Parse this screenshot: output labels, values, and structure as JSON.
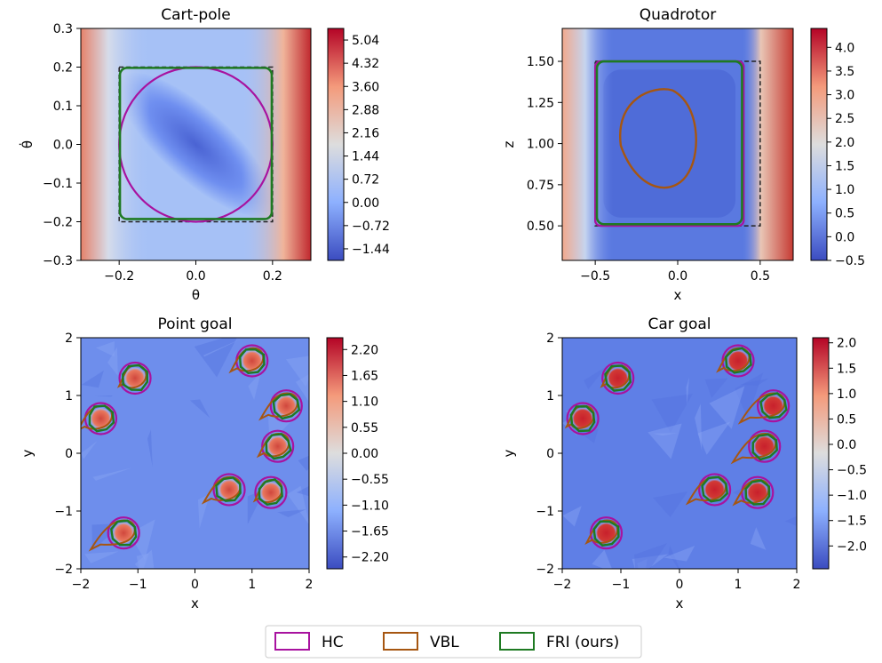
{
  "legend": [
    {
      "name": "HC",
      "color": "#a8129f"
    },
    {
      "name": "VBL",
      "color": "#a65611"
    },
    {
      "name": "FRI (ours)",
      "color": "#1e7a22"
    }
  ],
  "colors": {
    "cold": "#3b4cc0",
    "neutral": "#dddddd",
    "hot": "#b40426",
    "dashed": "#222222"
  },
  "chart_data": [
    {
      "type": "heatmap",
      "title": "Cart-pole",
      "xlabel": "θ",
      "ylabel": "θ̇",
      "xlim": [
        -0.3,
        0.3
      ],
      "ylim": [
        -0.3,
        0.3
      ],
      "xticks": [
        -0.2,
        0.0,
        0.2
      ],
      "xtick_labels": [
        "−0.2",
        "0.0",
        "0.2"
      ],
      "yticks": [
        -0.3,
        -0.2,
        -0.1,
        0.0,
        0.1,
        0.2,
        0.3
      ],
      "ytick_labels": [
        "−0.3",
        "−0.2",
        "−0.1",
        "0.0",
        "0.1",
        "0.2",
        "0.3"
      ],
      "colorbar_range": [
        -1.8,
        5.4
      ],
      "colorbar_ticks": [
        -1.44,
        -0.72,
        0.0,
        0.72,
        1.44,
        2.16,
        2.88,
        3.6,
        4.32,
        5.04
      ],
      "colorbar_tick_labels": [
        "−1.44",
        "−0.72",
        "0.00",
        "0.72",
        "1.44",
        "2.16",
        "2.88",
        "3.60",
        "4.32",
        "5.04"
      ],
      "dashed_box": [
        -0.2,
        -0.2,
        0.2,
        0.2
      ],
      "hc_circle": {
        "cx": 0.0,
        "cy": 0.0,
        "r": 0.2
      },
      "fri_box": {
        "x0": -0.198,
        "y0": -0.193,
        "x1": 0.198,
        "y1": 0.198
      }
    },
    {
      "type": "heatmap",
      "title": "Quadrotor",
      "xlabel": "x",
      "ylabel": "z",
      "xlim": [
        -0.7,
        0.7
      ],
      "ylim": [
        0.29,
        1.7
      ],
      "xticks": [
        -0.5,
        0.0,
        0.5
      ],
      "xtick_labels": [
        "−0.5",
        "0.0",
        "0.5"
      ],
      "yticks": [
        0.5,
        0.75,
        1.0,
        1.25,
        1.5
      ],
      "ytick_labels": [
        "0.50",
        "0.75",
        "1.00",
        "1.25",
        "1.50"
      ],
      "colorbar_range": [
        -0.5,
        4.4
      ],
      "colorbar_ticks": [
        -0.5,
        0.0,
        0.5,
        1.0,
        1.5,
        2.0,
        2.5,
        3.0,
        3.5,
        4.0
      ],
      "colorbar_tick_labels": [
        "−0.5",
        "0.0",
        "0.5",
        "1.0",
        "1.5",
        "2.0",
        "2.5",
        "3.0",
        "3.5",
        "4.0"
      ],
      "dashed_box": [
        -0.5,
        0.5,
        0.5,
        1.5
      ],
      "hc_box": {
        "x0": -0.5,
        "y0": 0.5,
        "x1": 0.4,
        "y1": 1.5
      },
      "fri_box": {
        "x0": -0.49,
        "y0": 0.51,
        "x1": 0.39,
        "y1": 1.5
      },
      "vbl_oval": {
        "cx": -0.12,
        "cy": 1.02,
        "rx": 0.25,
        "ry": 0.32
      }
    },
    {
      "type": "heatmap",
      "title": "Point goal",
      "xlabel": "x",
      "ylabel": "y",
      "xlim": [
        -2,
        2
      ],
      "ylim": [
        -2,
        2
      ],
      "xticks": [
        -2,
        -1,
        0,
        1,
        2
      ],
      "xtick_labels": [
        "−2",
        "−1",
        "0",
        "1",
        "2"
      ],
      "yticks": [
        -2,
        -1,
        0,
        1,
        2
      ],
      "ytick_labels": [
        "−2",
        "−1",
        "0",
        "1",
        "2"
      ],
      "colorbar_range": [
        -2.45,
        2.45
      ],
      "colorbar_ticks": [
        -2.2,
        -1.65,
        -1.1,
        -0.55,
        0.0,
        0.55,
        1.1,
        1.65,
        2.2
      ],
      "colorbar_tick_labels": [
        "−2.20",
        "−1.65",
        "−1.10",
        "−0.55",
        "0.00",
        "0.55",
        "1.10",
        "1.65",
        "2.20"
      ],
      "hazards": [
        [
          -1.05,
          1.3
        ],
        [
          1.0,
          1.6
        ],
        [
          1.6,
          0.82
        ],
        [
          -1.65,
          0.6
        ],
        [
          1.45,
          0.12
        ],
        [
          0.6,
          -0.63
        ],
        [
          1.33,
          -0.68
        ],
        [
          -1.25,
          -1.38
        ]
      ]
    },
    {
      "type": "heatmap",
      "title": "Car goal",
      "xlabel": "x",
      "ylabel": "y",
      "xlim": [
        -2,
        2
      ],
      "ylim": [
        -2,
        2
      ],
      "xticks": [
        -2,
        -1,
        0,
        1,
        2
      ],
      "xtick_labels": [
        "−2",
        "−1",
        "0",
        "1",
        "2"
      ],
      "yticks": [
        -2,
        -1,
        0,
        1,
        2
      ],
      "ytick_labels": [
        "−2",
        "−1",
        "0",
        "1",
        "2"
      ],
      "colorbar_range": [
        -2.45,
        2.1
      ],
      "colorbar_ticks": [
        -2.0,
        -1.5,
        -1.0,
        -0.5,
        0.0,
        0.5,
        1.0,
        1.5,
        2.0
      ],
      "colorbar_tick_labels": [
        "−2.0",
        "−1.5",
        "−1.0",
        "−0.5",
        "0.0",
        "0.5",
        "1.0",
        "1.5",
        "2.0"
      ],
      "hazards": [
        [
          -1.05,
          1.3
        ],
        [
          1.0,
          1.6
        ],
        [
          1.6,
          0.82
        ],
        [
          -1.65,
          0.6
        ],
        [
          1.45,
          0.12
        ],
        [
          0.6,
          -0.63
        ],
        [
          1.33,
          -0.68
        ],
        [
          -1.25,
          -1.38
        ]
      ]
    }
  ]
}
